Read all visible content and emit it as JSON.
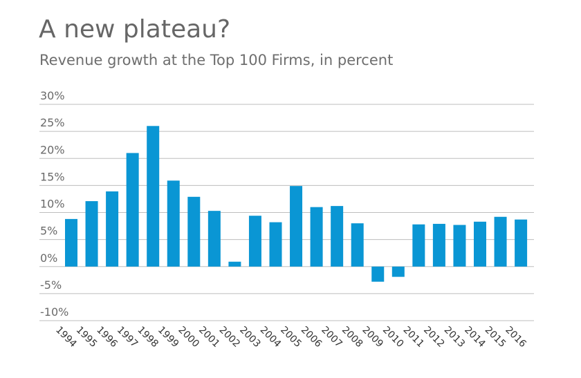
{
  "header": {
    "title": "A new plateau?",
    "subtitle": "Revenue growth at the Top 100 Firms, in percent"
  },
  "colors": {
    "bar": "#0a96d4",
    "grid": "#bdbdbd",
    "zero_line": "#bdbdbd"
  },
  "chart_data": {
    "type": "bar",
    "title": "A new plateau?",
    "subtitle": "Revenue growth at the Top 100 Firms, in percent",
    "xlabel": "",
    "ylabel": "",
    "ylim": [
      -10,
      30
    ],
    "yticks": [
      30,
      25,
      20,
      15,
      10,
      5,
      0,
      -5,
      -10
    ],
    "ytick_labels": [
      "30%",
      "25%",
      "20%",
      "15%",
      "10%",
      "5%",
      "0%",
      "-5%",
      "-10%"
    ],
    "grid": true,
    "legend": "none",
    "categories": [
      "1994",
      "1995",
      "1996",
      "1997",
      "1998",
      "1999",
      "2000",
      "2001",
      "2002",
      "2003",
      "2004",
      "2005",
      "2006",
      "2007",
      "2008",
      "2009",
      "2010",
      "2011",
      "2012",
      "2013",
      "2014",
      "2015",
      "2016"
    ],
    "values": [
      8.8,
      12.1,
      13.9,
      21.0,
      26.0,
      15.9,
      12.9,
      10.3,
      0.9,
      9.4,
      8.2,
      14.9,
      11.0,
      11.2,
      8.0,
      -2.8,
      -1.9,
      7.8,
      7.9,
      7.7,
      8.3,
      9.2,
      8.7
    ]
  }
}
